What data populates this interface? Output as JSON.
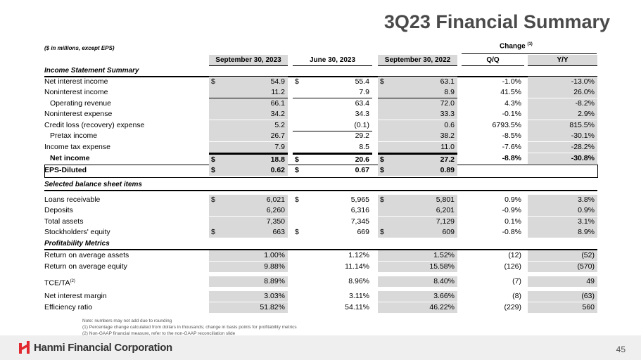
{
  "title": "3Q23 Financial Summary",
  "units": "($ in millions, except EPS)",
  "change_label": "Change",
  "change_note": "(1)",
  "columns": [
    "September 30, 2023",
    "June 30, 2023",
    "September 30, 2022",
    "Q/Q",
    "Y/Y"
  ],
  "sections": {
    "income": "Income Statement Summary",
    "balance": "Selected balance sheet items",
    "profit": "Profitability Metrics"
  },
  "income_rows": [
    {
      "label": "Net interest income",
      "d": true,
      "v": [
        "54.9",
        "55.4",
        "63.1",
        "-1.0%",
        "-13.0%"
      ]
    },
    {
      "label": "Noninterest income",
      "v": [
        "11.2",
        "7.9",
        "8.9",
        "41.5%",
        "26.0%"
      ]
    },
    {
      "label": "Operating revenue",
      "indent": true,
      "v": [
        "66.1",
        "63.4",
        "72.0",
        "4.3%",
        "-8.2%"
      ]
    },
    {
      "label": "Noninterest expense",
      "v": [
        "34.2",
        "34.3",
        "33.3",
        "-0.1%",
        "2.9%"
      ]
    },
    {
      "label": "Credit loss (recovery) expense",
      "v": [
        "5.2",
        "(0.1)",
        "0.6",
        "6793.5%",
        "815.5%"
      ]
    },
    {
      "label": "Pretax income",
      "indent": true,
      "v": [
        "26.7",
        "29.2",
        "38.2",
        "-8.5%",
        "-30.1%"
      ]
    },
    {
      "label": "Income tax expense",
      "v": [
        "7.9",
        "8.5",
        "11.0",
        "-7.6%",
        "-28.2%"
      ]
    },
    {
      "label": "Net income",
      "indent": true,
      "bold": true,
      "d": true,
      "v": [
        "18.8",
        "20.6",
        "27.2",
        "-8.8%",
        "-30.8%"
      ]
    }
  ],
  "eps": {
    "label": "EPS-Diluted",
    "v": [
      "0.62",
      "0.67",
      "0.89"
    ]
  },
  "balance_rows": [
    {
      "label": "Loans receivable",
      "d": true,
      "v": [
        "6,021",
        "5,965",
        "5,801",
        "0.9%",
        "3.8%"
      ]
    },
    {
      "label": "Deposits",
      "v": [
        "6,260",
        "6,316",
        "6,201",
        "-0.9%",
        "0.9%"
      ]
    },
    {
      "label": "Total assets",
      "v": [
        "7,350",
        "7,345",
        "7,129",
        "0.1%",
        "3.1%"
      ]
    },
    {
      "label": "Stockholders' equity",
      "d": true,
      "v": [
        "663",
        "669",
        "609",
        "-0.8%",
        "8.9%"
      ]
    }
  ],
  "profit_rows": [
    {
      "label": "Return on average assets",
      "v": [
        "1.00%",
        "1.12%",
        "1.52%",
        "(12)",
        "(52)"
      ]
    },
    {
      "label": "Return on average equity",
      "v": [
        "9.88%",
        "11.14%",
        "15.58%",
        "(126)",
        "(570)"
      ]
    },
    {
      "label": "TCE/TA",
      "sup": "(2)",
      "v": [
        "8.89%",
        "8.96%",
        "8.40%",
        "(7)",
        "49"
      ]
    },
    {
      "label": "Net interest margin",
      "v": [
        "3.03%",
        "3.11%",
        "3.66%",
        "(8)",
        "(63)"
      ]
    },
    {
      "label": "Efficiency ratio",
      "v": [
        "51.82%",
        "54.11%",
        "46.22%",
        "(229)",
        "560"
      ]
    }
  ],
  "dollar": "$",
  "notes": [
    "Note: numbers may not add due to rounding",
    "(1)   Percentage change calculated from dollars in thousands; change in basis points for profitability metrics",
    "(2)   Non-GAAP financial measure, refer to the non-GAAP reconciliation slide"
  ],
  "company": "Hanmi Financial Corporation",
  "page_number": "45",
  "colors": {
    "shade": "#d9d9d9",
    "logo_red": "#e0282e"
  }
}
